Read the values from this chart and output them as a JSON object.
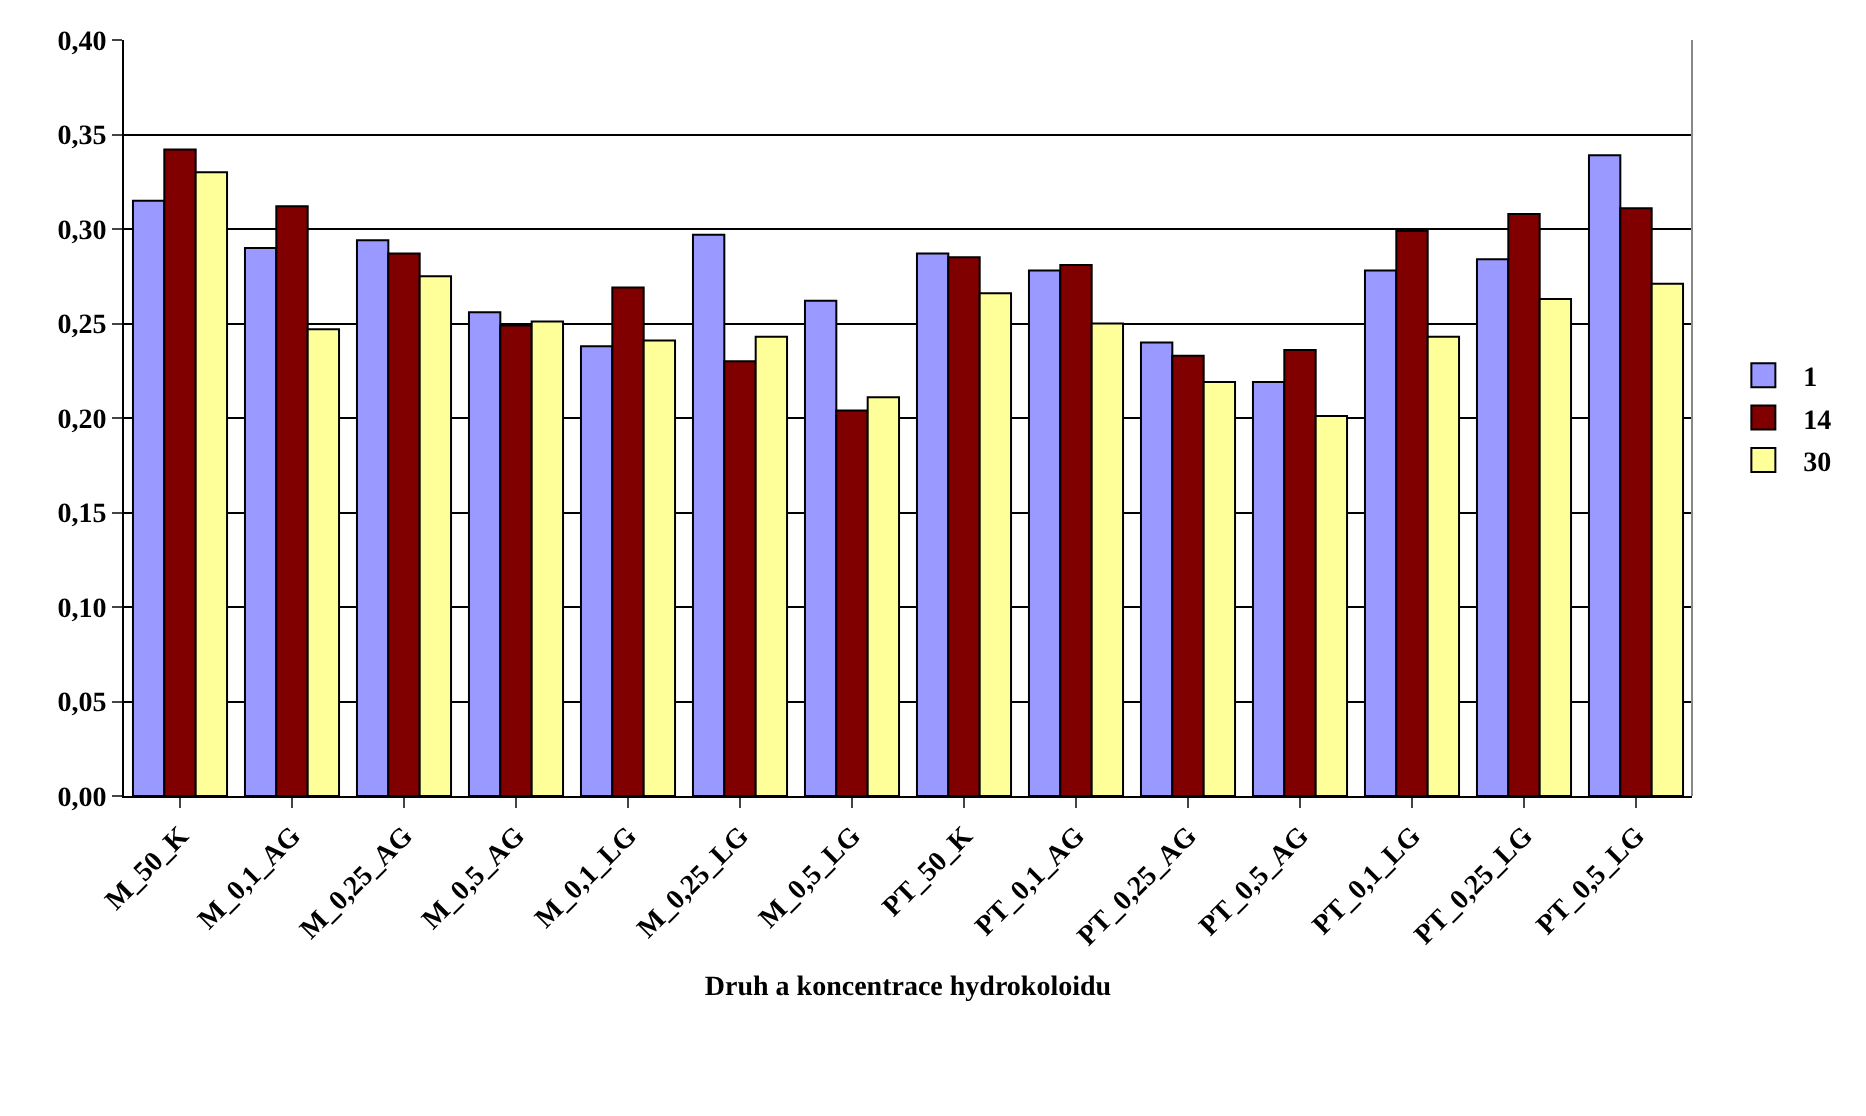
{
  "chart_data": {
    "type": "bar",
    "xlabel": "Druh a koncentrace hydrokoloidu",
    "categories": [
      "M_50_K",
      "M_0,1_AG",
      "M_0,25_AG",
      "M_0,5_AG",
      "M_0,1_LG",
      "M_0,25_LG",
      "M_0,5_LG",
      "PT_50_K",
      "PT_0,1_AG",
      "PT_0,25_AG",
      "PT_0,5_AG",
      "PT_0,1_LG",
      "PT_0,25_LG",
      "PT_0,5_LG"
    ],
    "series": [
      {
        "name": "1",
        "color": "#9999ff",
        "values": [
          0.315,
          0.29,
          0.294,
          0.256,
          0.238,
          0.297,
          0.262,
          0.287,
          0.278,
          0.24,
          0.219,
          0.278,
          0.284,
          0.339
        ]
      },
      {
        "name": "14",
        "color": "#800000",
        "values": [
          0.342,
          0.312,
          0.287,
          0.249,
          0.269,
          0.23,
          0.204,
          0.285,
          0.281,
          0.233,
          0.236,
          0.299,
          0.308,
          0.311
        ]
      },
      {
        "name": "30",
        "color": "#ffff99",
        "values": [
          0.33,
          0.247,
          0.275,
          0.251,
          0.241,
          0.243,
          0.211,
          0.266,
          0.25,
          0.219,
          0.201,
          0.243,
          0.263,
          0.271
        ]
      }
    ],
    "ylim": [
      0,
      0.4
    ],
    "yticks": [
      {
        "value": 0,
        "label": "0,00"
      },
      {
        "value": 0.05,
        "label": "0,05"
      },
      {
        "value": 0.1,
        "label": "0,10"
      },
      {
        "value": 0.15,
        "label": "0,15"
      },
      {
        "value": 0.2,
        "label": "0,20"
      },
      {
        "value": 0.25,
        "label": "0,25"
      },
      {
        "value": 0.3,
        "label": "0,30"
      },
      {
        "value": 0.35,
        "label": "0,35"
      },
      {
        "value": 0.4,
        "label": "0,40"
      }
    ],
    "grid": "y",
    "legend": "right"
  }
}
